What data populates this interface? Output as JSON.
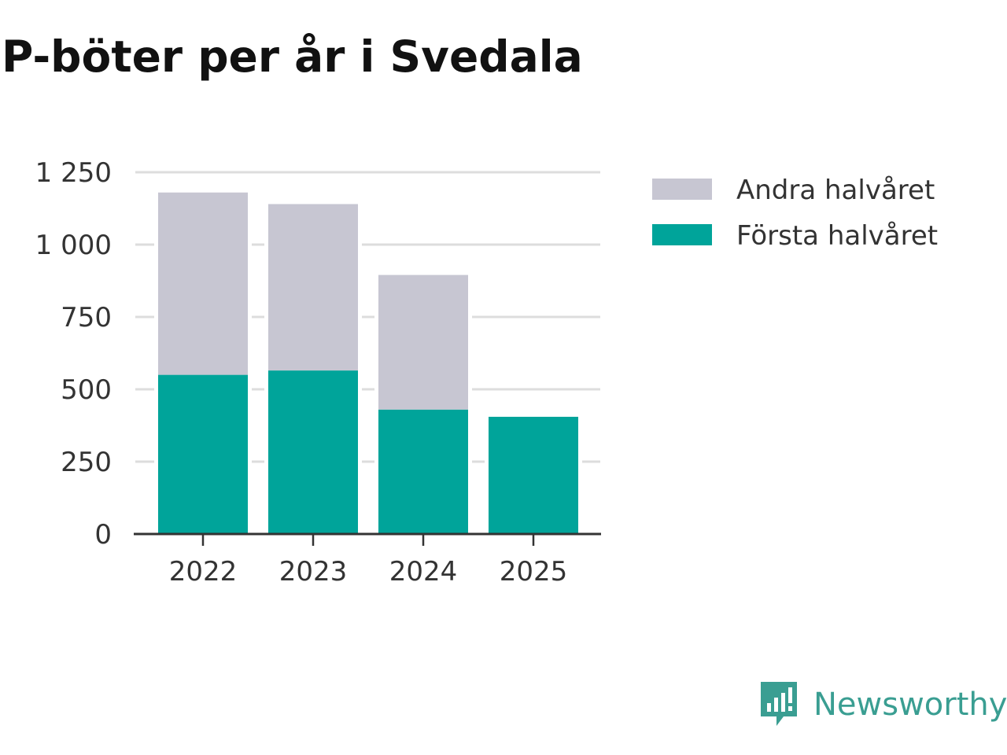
{
  "chart_data": {
    "type": "bar",
    "stacked": true,
    "title": "P-böter per år i Svedala",
    "categories": [
      "2022",
      "2023",
      "2024",
      "2025"
    ],
    "series": [
      {
        "name": "Första halvåret",
        "color": "#00a49a",
        "values": [
          550,
          565,
          430,
          405
        ]
      },
      {
        "name": "Andra halvåret",
        "color": "#c7c6d2",
        "values": [
          630,
          575,
          465,
          0
        ]
      }
    ],
    "legend_order": [
      "Andra halvåret",
      "Första halvåret"
    ],
    "yticks": [
      0,
      250,
      500,
      750,
      1000,
      1250
    ],
    "ytick_labels": [
      "0",
      "250",
      "500",
      "750",
      "1 000",
      "1 250"
    ],
    "ylim": [
      0,
      1250
    ],
    "xlabel": "",
    "ylabel": "",
    "grid": true,
    "legend_position": "right"
  },
  "brand": {
    "name": "Newsworthy",
    "icon": "newsworthy-logo-icon"
  }
}
